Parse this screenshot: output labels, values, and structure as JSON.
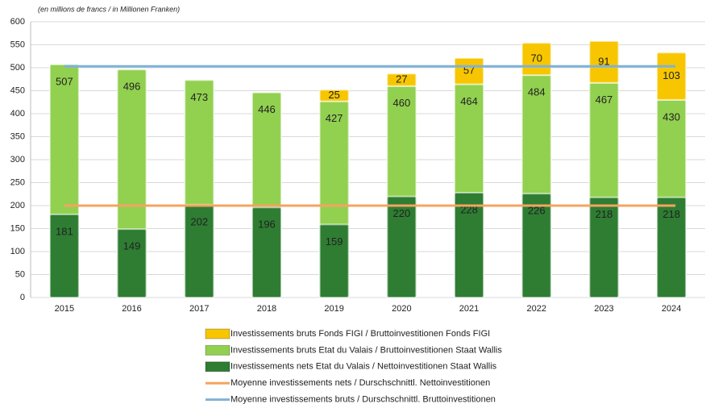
{
  "chart_data": {
    "type": "bar",
    "subtitle": "(en millions de francs / in Millionen Franken)",
    "categories": [
      "2015",
      "2016",
      "2017",
      "2018",
      "2019",
      "2020",
      "2021",
      "2022",
      "2023",
      "2024"
    ],
    "ylim": [
      0,
      600
    ],
    "yticks": [
      0,
      50,
      100,
      150,
      200,
      250,
      300,
      350,
      400,
      450,
      500,
      550,
      600
    ],
    "grid": true,
    "series": [
      {
        "name": "Investissements bruts Fonds FIGI / Bruttoinvestitionen Fonds FIGI",
        "color": "#f7c600",
        "kind": "bar",
        "stack_on": 1,
        "values": [
          null,
          null,
          null,
          null,
          25,
          27,
          57,
          70,
          91,
          103
        ]
      },
      {
        "name": "Investissements bruts Etat du Valais / Bruttoinvestitionen Staat Wallis",
        "color": "#92d050",
        "kind": "bar",
        "values": [
          507,
          496,
          473,
          446,
          427,
          460,
          464,
          484,
          467,
          430
        ]
      },
      {
        "name": "Investissements nets Etat du Valais / Nettoinvestitionen Staat Wallis",
        "color": "#2e7d32",
        "kind": "bar",
        "values": [
          181,
          149,
          202,
          196,
          159,
          220,
          228,
          226,
          218,
          218
        ]
      },
      {
        "name": "Moyenne investissements nets / Durschschnittl. Nettoinvestitionen",
        "color": "#f4a460",
        "kind": "line",
        "value": 200
      },
      {
        "name": "Moyenne investissements bruts / Durschschnittl. Bruttoinvestitionen",
        "color": "#7fb2d9",
        "kind": "line",
        "value": 503
      }
    ]
  }
}
